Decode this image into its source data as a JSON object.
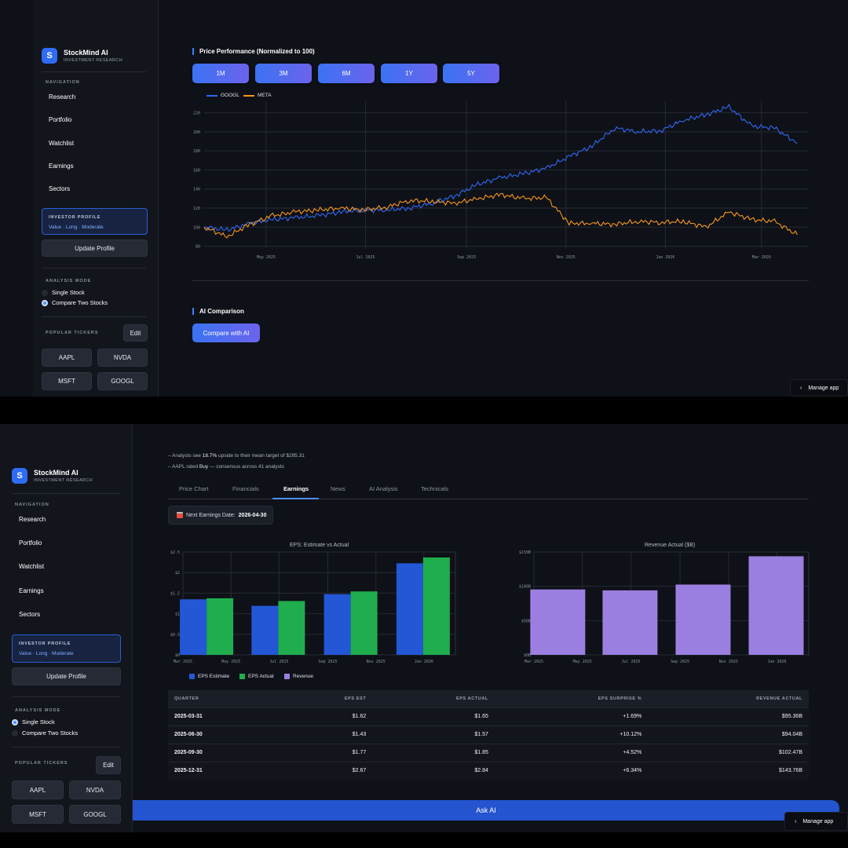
{
  "app": {
    "name": "StockMind AI",
    "subtitle": "INVESTMENT RESEARCH",
    "logo_letter": "S"
  },
  "sidebar": {
    "nav_label": "NAVIGATION",
    "items": [
      {
        "label": "Research"
      },
      {
        "label": "Portfolio"
      },
      {
        "label": "Watchlist"
      },
      {
        "label": "Earnings"
      },
      {
        "label": "Sectors"
      }
    ],
    "investor_profile_label": "INVESTOR PROFILE",
    "investor_profile_value": "Value · Long · Moderate",
    "update_profile": "Update Profile",
    "analysis_mode_label": "ANALYSIS MODE",
    "analysis_modes": [
      "Single Stock",
      "Compare Two Stocks"
    ],
    "popular_tickers_label": "POPULAR TICKERS",
    "edit": "Edit",
    "tickers": [
      "AAPL",
      "NVDA",
      "MSFT",
      "GOOGL"
    ]
  },
  "screen1": {
    "analysis_mode_selected": "Compare Two Stocks",
    "price_title": "Price Performance (Normalized to 100)",
    "ranges": [
      "1M",
      "3M",
      "6M",
      "1Y",
      "5Y"
    ],
    "ai_comparison_title": "AI Comparison",
    "compare_button": "Compare with AI",
    "manage_app": "Manage app"
  },
  "screen2": {
    "analysis_mode_selected": "Single Stock",
    "info_lines": [
      {
        "prefix": "– Analysts see ",
        "highlight": "18.7%",
        "suffix": " upside to their mean target of $295.31"
      },
      {
        "prefix": "– AAPL rated ",
        "highlight": "Buy",
        "suffix": " — consensus across 41 analysts"
      }
    ],
    "tabs": [
      "Price Chart",
      "Financials",
      "Earnings",
      "News",
      "AI Analysis",
      "Technicals"
    ],
    "active_tab": "Earnings",
    "next_earnings_label": "Next Earnings Date:",
    "next_earnings_value": "2026-04-30",
    "table": {
      "headers": [
        "QUARTER",
        "EPS EST",
        "EPS ACTUAL",
        "EPS SURPRISE %",
        "REVENUE ACTUAL"
      ],
      "rows": [
        [
          "2025-03-31",
          "$1.62",
          "$1.65",
          "+1.69%",
          "$95.36B"
        ],
        [
          "2025-06-30",
          "$1.43",
          "$1.57",
          "+10.12%",
          "$94.04B"
        ],
        [
          "2025-09-30",
          "$1.77",
          "$1.85",
          "+4.52%",
          "$102.47B"
        ],
        [
          "2025-12-31",
          "$2.67",
          "$2.84",
          "+6.34%",
          "$143.76B"
        ]
      ]
    },
    "ask_ai": "Ask AI",
    "manage_app": "Manage app"
  },
  "colors": {
    "googl": "#2f67f6",
    "meta": "#f7961c",
    "eps_estimate": "#2357d6",
    "eps_actual": "#1fad4e",
    "revenue": "#9b7fe0",
    "accent": "#3b82f6"
  },
  "chart_data": [
    {
      "type": "line",
      "series": [
        {
          "name": "GOOGL",
          "x": [
            "2025-03-24",
            "2025-04-07",
            "2025-04-21",
            "2025-05-05",
            "2025-05-19",
            "2025-06-02",
            "2025-06-16",
            "2025-06-30",
            "2025-07-14",
            "2025-07-28",
            "2025-08-11",
            "2025-08-25",
            "2025-09-08",
            "2025-09-22",
            "2025-10-06",
            "2025-10-20",
            "2025-11-03",
            "2025-11-17",
            "2025-12-01",
            "2025-12-15",
            "2025-12-29",
            "2026-01-12",
            "2026-01-26",
            "2026-02-09",
            "2026-02-23",
            "2026-03-09",
            "2026-03-23"
          ],
          "values": [
            100,
            97,
            104,
            108,
            110,
            112,
            116,
            118,
            118,
            120,
            125,
            133,
            145,
            152,
            156,
            162,
            174,
            185,
            204,
            200,
            201,
            212,
            218,
            226,
            206,
            204,
            188
          ]
        },
        {
          "name": "META",
          "x": [
            "2025-03-24",
            "2025-04-07",
            "2025-04-21",
            "2025-05-05",
            "2025-05-19",
            "2025-06-02",
            "2025-06-16",
            "2025-06-30",
            "2025-07-14",
            "2025-07-28",
            "2025-08-11",
            "2025-08-25",
            "2025-09-08",
            "2025-09-22",
            "2025-10-06",
            "2025-10-20",
            "2025-11-03",
            "2025-11-17",
            "2025-12-01",
            "2025-12-15",
            "2025-12-29",
            "2026-01-12",
            "2026-01-26",
            "2026-02-09",
            "2026-02-23",
            "2026-03-09",
            "2026-03-23"
          ],
          "values": [
            100,
            90,
            103,
            112,
            116,
            118,
            120,
            118,
            121,
            128,
            127,
            125,
            130,
            134,
            130,
            131,
            104,
            104,
            103,
            106,
            105,
            106,
            100,
            116,
            108,
            106,
            92
          ]
        }
      ],
      "x_ticks": [
        "May 2025",
        "Jul 2025",
        "Sep 2025",
        "Nov 2025",
        "Jan 2026",
        "Mar 2026"
      ],
      "y_ticks": [
        80,
        100,
        120,
        140,
        160,
        180,
        200,
        220
      ],
      "ylim": [
        78,
        232
      ],
      "legend": "top-left",
      "grid": true
    },
    {
      "type": "bar",
      "title": "EPS: Estimate vs Actual",
      "categories": [
        "2025-03-31",
        "2025-06-30",
        "2025-09-30",
        "2025-12-31"
      ],
      "series": [
        {
          "name": "EPS Estimate",
          "values": [
            1.62,
            1.43,
            1.77,
            2.67
          ]
        },
        {
          "name": "EPS Actual",
          "values": [
            1.65,
            1.57,
            1.85,
            2.84
          ]
        }
      ],
      "x_ticks": [
        "Mar 2025",
        "May 2025",
        "Jul 2025",
        "Sep 2025",
        "Nov 2025",
        "Jan 2026"
      ],
      "y_ticks": [
        "$0",
        "$0.5",
        "$1",
        "$1.5",
        "$2",
        "$2.5"
      ],
      "ylim": [
        0,
        3
      ],
      "grid": true
    },
    {
      "type": "bar",
      "title": "Revenue Actual ($B)",
      "categories": [
        "2025-03-31",
        "2025-06-30",
        "2025-09-30",
        "2025-12-31"
      ],
      "series": [
        {
          "name": "Revenue",
          "values": [
            95.36,
            94.04,
            102.47,
            143.76
          ]
        }
      ],
      "x_ticks": [
        "Mar 2025",
        "May 2025",
        "Jul 2025",
        "Sep 2025",
        "Nov 2025",
        "Jan 2026"
      ],
      "y_ticks": [
        "$0B",
        "$50B",
        "$100B",
        "$150B"
      ],
      "ylim": [
        0,
        150
      ],
      "grid": true
    }
  ]
}
